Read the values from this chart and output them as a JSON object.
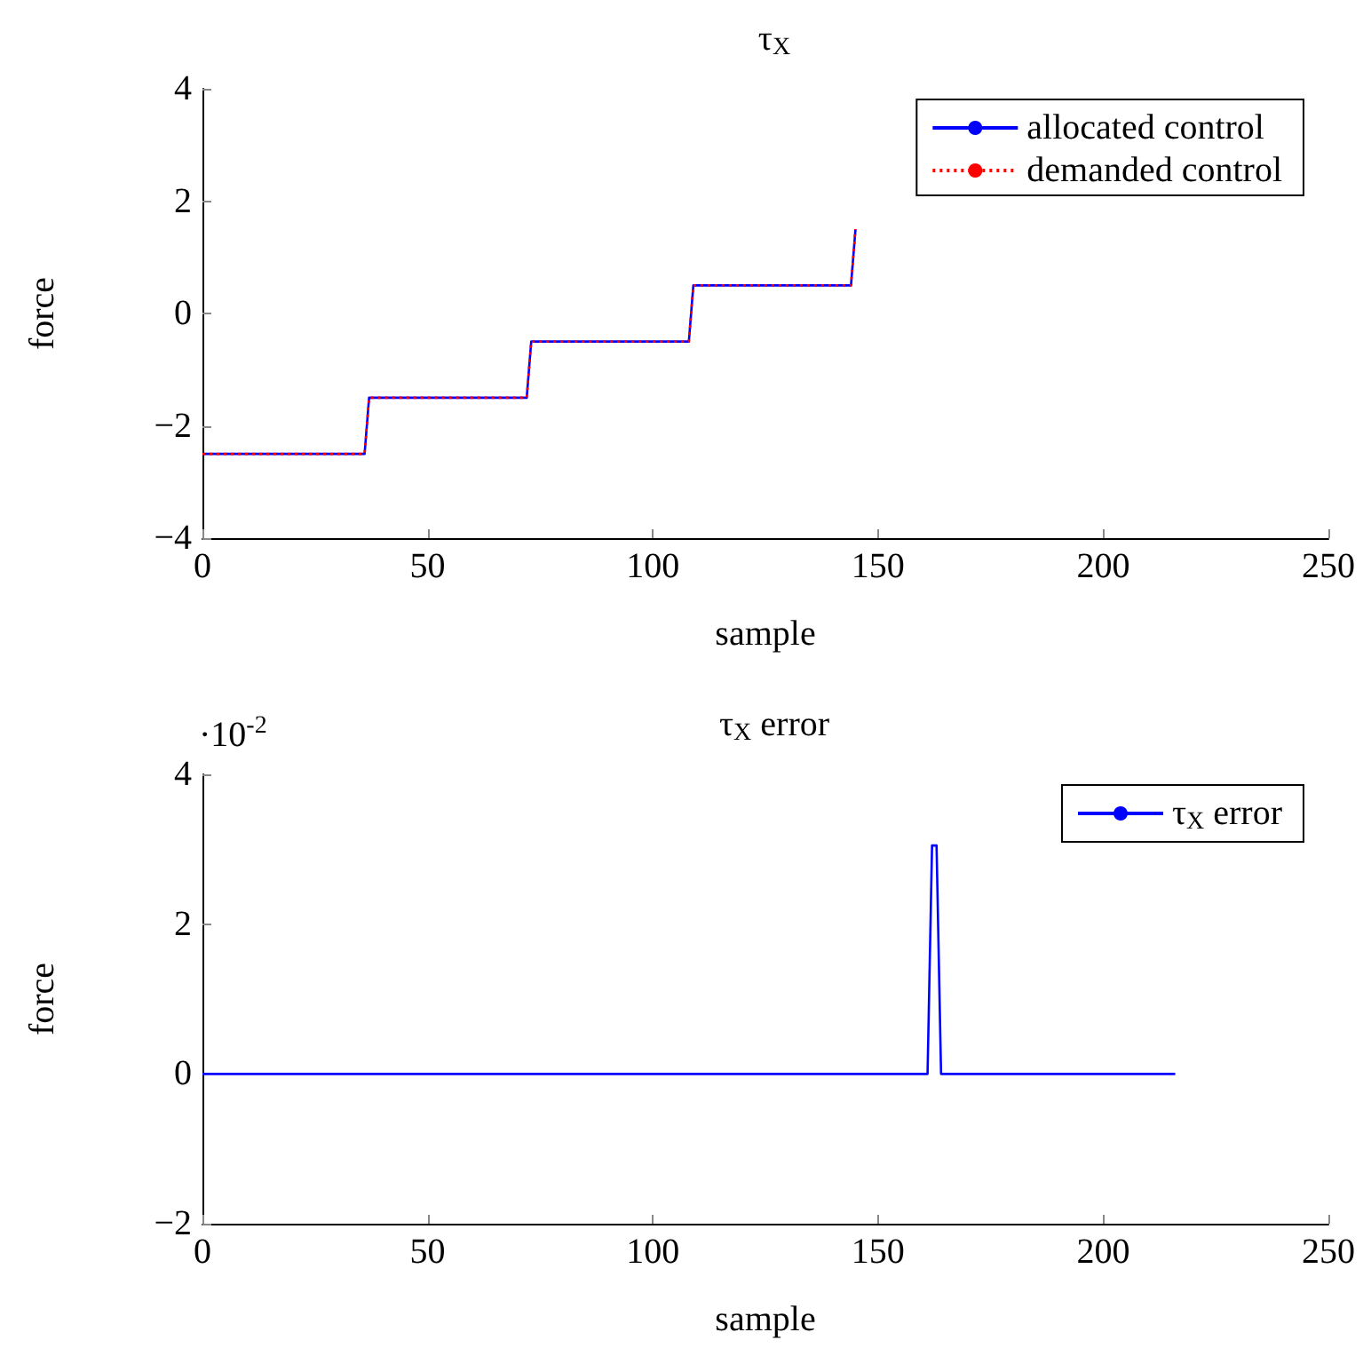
{
  "chart_data": [
    {
      "type": "line",
      "title": "τ$_{X}$",
      "xlabel": "sample",
      "ylabel": "force",
      "xlim": [
        0,
        250
      ],
      "xticks": [
        0,
        50,
        100,
        150,
        200,
        250
      ],
      "ylim": [
        -4,
        4
      ],
      "yticks": [
        -4,
        -2,
        0,
        2,
        4
      ],
      "legend": "top right",
      "marker": "none",
      "grid": false,
      "series": [
        {
          "name": "allocated control",
          "color": "#0000ff",
          "line_style": "solid",
          "x": [
            0,
            36,
            37,
            72,
            73,
            108,
            109,
            144,
            145
          ],
          "values": [
            -2.5,
            -2.5,
            -1.5,
            -1.5,
            -0.5,
            -0.5,
            0.5,
            0.5,
            1.5
          ]
        },
        {
          "name": "demanded control",
          "color": "#ff0000",
          "line_style": "dotted",
          "x": [
            0,
            36,
            37,
            72,
            73,
            108,
            109,
            144,
            145
          ],
          "values": [
            -2.5,
            -2.5,
            -1.5,
            -1.5,
            -0.5,
            -0.5,
            0.5,
            0.5,
            1.5
          ]
        }
      ]
    },
    {
      "type": "line",
      "title": "τ$_{X}$ error",
      "xlabel": "sample",
      "ylabel": "force",
      "xlim": [
        0,
        250
      ],
      "xticks": [
        0,
        50,
        100,
        150,
        200,
        250
      ],
      "ylim": [
        -2,
        4
      ],
      "yticks": [
        -2,
        0,
        2,
        4
      ],
      "legend": "top right",
      "marker": "none",
      "grid": false,
      "annotations": [
        "·10$^{-2}$"
      ],
      "series": [
        {
          "name": "τ$_{X}$ error",
          "color": "#0000ff",
          "line_style": "solid",
          "x": [
            0,
            161,
            162,
            163,
            164,
            216
          ],
          "values": [
            0,
            0,
            3.05,
            3.05,
            0,
            0
          ]
        }
      ]
    }
  ]
}
